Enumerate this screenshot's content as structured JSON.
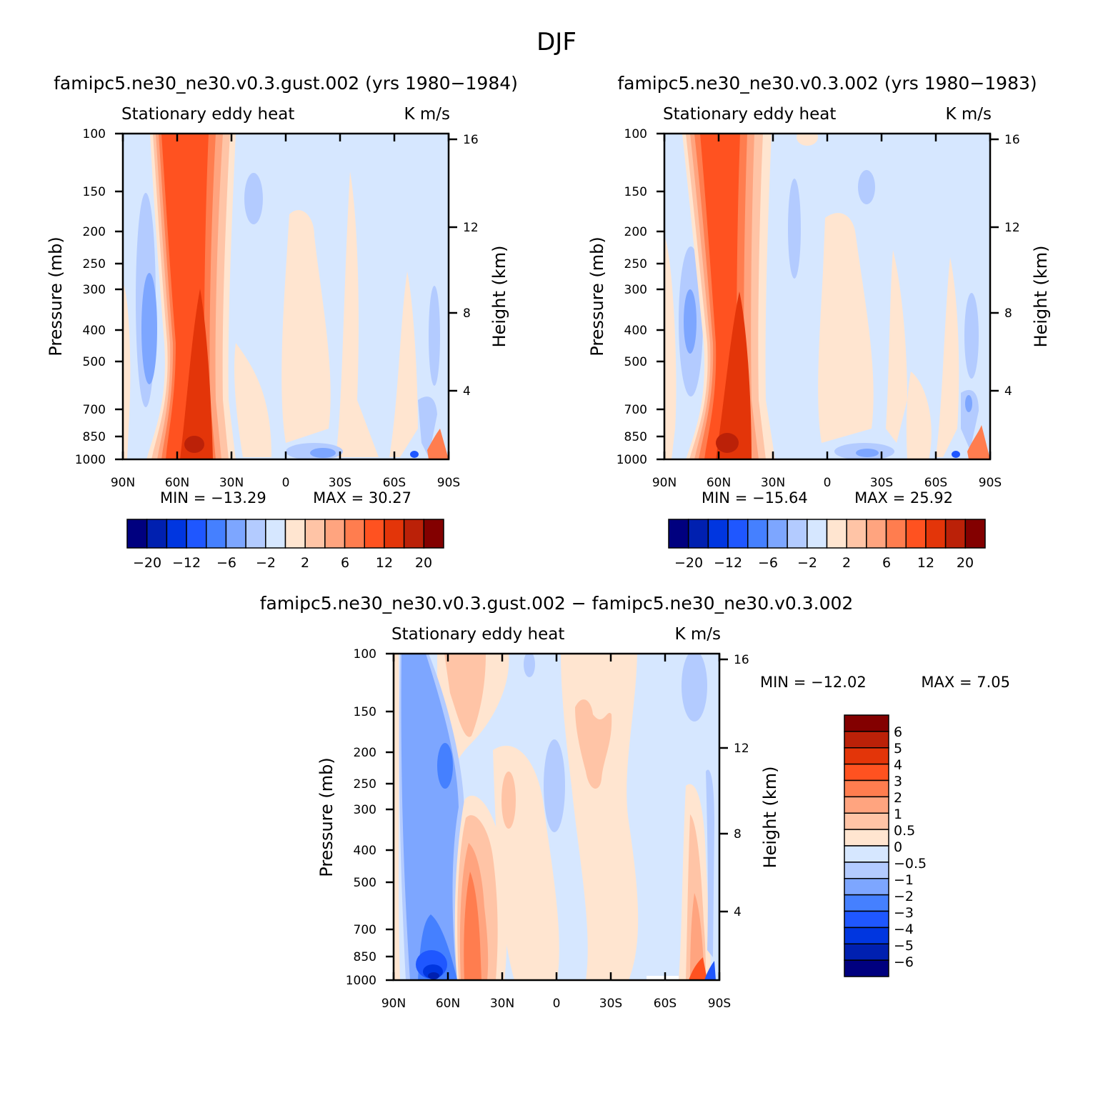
{
  "chart_data": {
    "figure_title": "DJF",
    "panels": [
      {
        "type": "heatmap",
        "title": "famipc5.ne30_ne30.v0.3.gust.002 (yrs 1980−1984)",
        "left_subtitle": "Stationary eddy heat",
        "right_subtitle": "K m/s",
        "ylabel": "Pressure (mb)",
        "ylabel2": "Height (km)",
        "x_ticks": [
          "90N",
          "60N",
          "30N",
          "0",
          "30S",
          "60S",
          "90S"
        ],
        "y_ticks": [
          "100",
          "150",
          "200",
          "250",
          "300",
          "400",
          "500",
          "700",
          "850",
          "1000"
        ],
        "y2_ticks": [
          "16",
          "12",
          "8",
          "4"
        ],
        "min_label": "MIN = −13.29",
        "max_label": "MAX = 30.27",
        "min": -13.29,
        "max": 30.27,
        "colorbar_labels": [
          "−20",
          "−12",
          "−6",
          "−2",
          "2",
          "6",
          "12",
          "20"
        ]
      },
      {
        "type": "heatmap",
        "title": "famipc5.ne30_ne30.v0.3.002 (yrs 1980−1983)",
        "left_subtitle": "Stationary eddy heat",
        "right_subtitle": "K m/s",
        "ylabel": "Pressure (mb)",
        "ylabel2": "Height (km)",
        "x_ticks": [
          "90N",
          "60N",
          "30N",
          "0",
          "30S",
          "60S",
          "90S"
        ],
        "y_ticks": [
          "100",
          "150",
          "200",
          "250",
          "300",
          "400",
          "500",
          "700",
          "850",
          "1000"
        ],
        "y2_ticks": [
          "16",
          "12",
          "8",
          "4"
        ],
        "min_label": "MIN = −15.64",
        "max_label": "MAX = 25.92",
        "min": -15.64,
        "max": 25.92,
        "colorbar_labels": [
          "−20",
          "−12",
          "−6",
          "−2",
          "2",
          "6",
          "12",
          "20"
        ]
      },
      {
        "type": "heatmap",
        "title": "famipc5.ne30_ne30.v0.3.gust.002 − famipc5.ne30_ne30.v0.3.002",
        "left_subtitle": "Stationary eddy heat",
        "right_subtitle": "K m/s",
        "ylabel": "Pressure (mb)",
        "ylabel2": "Height (km)",
        "x_ticks": [
          "90N",
          "60N",
          "30N",
          "0",
          "30S",
          "60S",
          "90S"
        ],
        "y_ticks": [
          "100",
          "150",
          "200",
          "250",
          "300",
          "400",
          "500",
          "700",
          "850",
          "1000"
        ],
        "y2_ticks": [
          "16",
          "12",
          "8",
          "4"
        ],
        "min_label": "MIN = −12.02",
        "max_label": "MAX = 7.05",
        "min": -12.02,
        "max": 7.05,
        "colorbar_labels": [
          "6",
          "5",
          "4",
          "3",
          "2",
          "1",
          "0.5",
          "0",
          "−0.5",
          "−1",
          "−2",
          "−3",
          "−4",
          "−5",
          "−6"
        ]
      }
    ],
    "colors": [
      "#00007f",
      "#0020b0",
      "#0036e0",
      "#1f57ff",
      "#4580ff",
      "#7da6ff",
      "#b3cbff",
      "#d6e7ff",
      "#ffe5d0",
      "#ffc4a6",
      "#ffa47f",
      "#ff7d4f",
      "#ff5220",
      "#e33509",
      "#bb2108",
      "#830000"
    ]
  }
}
